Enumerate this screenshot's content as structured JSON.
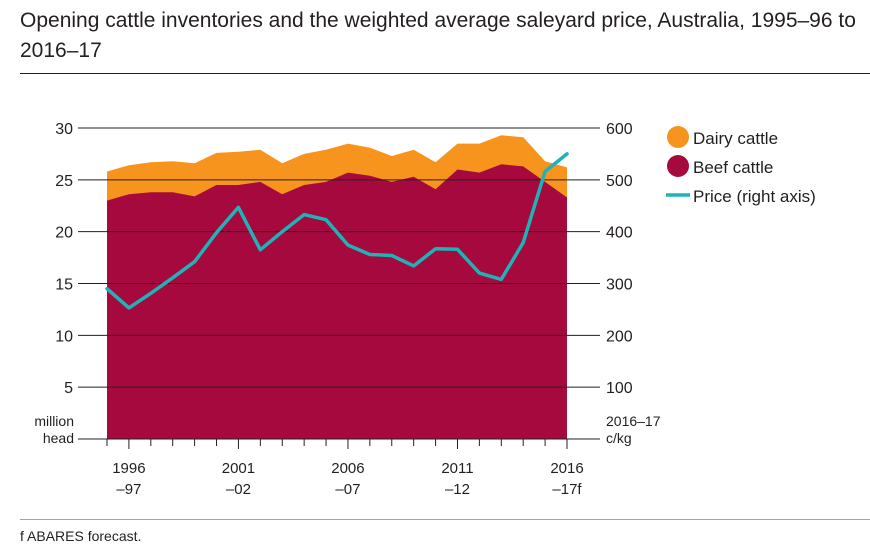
{
  "title": "Opening cattle inventories and the weighted average saleyard price, Australia, 1995–96 to 2016–17",
  "footnote": "f ABARES forecast.",
  "colors": {
    "dairy": "#f7941d",
    "beef": "#a6093d",
    "price": "#1db3b8",
    "rule": "#f7941d",
    "axis": "#231f20"
  },
  "chart_data": {
    "type": "area",
    "x": [
      "1995-96",
      "1996-97",
      "1997-98",
      "1998-99",
      "1999-00",
      "2000-01",
      "2001-02",
      "2002-03",
      "2003-04",
      "2004-05",
      "2005-06",
      "2006-07",
      "2007-08",
      "2008-09",
      "2009-10",
      "2010-11",
      "2011-12",
      "2012-13",
      "2013-14",
      "2014-15",
      "2015-16",
      "2016-17f"
    ],
    "series": [
      {
        "name": "Beef cattle",
        "kind": "area",
        "axis": "left",
        "values": [
          23.0,
          23.6,
          23.8,
          23.8,
          23.4,
          24.5,
          24.5,
          24.8,
          23.6,
          24.5,
          24.8,
          25.7,
          25.4,
          24.8,
          25.3,
          24.1,
          26.0,
          25.7,
          26.5,
          26.3,
          24.8,
          23.3
        ]
      },
      {
        "name": "Dairy cattle",
        "kind": "area",
        "axis": "left",
        "stacked": true,
        "values": [
          2.8,
          2.8,
          2.9,
          3.0,
          3.2,
          3.1,
          3.2,
          3.1,
          3.0,
          3.0,
          3.1,
          2.8,
          2.7,
          2.5,
          2.6,
          2.6,
          2.5,
          2.8,
          2.8,
          2.8,
          2.0,
          2.9
        ]
      },
      {
        "name": "Price (right axis)",
        "kind": "line",
        "axis": "right",
        "values": [
          290,
          253,
          281,
          311,
          342,
          398,
          447,
          365,
          400,
          433,
          423,
          374,
          356,
          354,
          334,
          367,
          366,
          320,
          308,
          379,
          516,
          550
        ]
      }
    ],
    "y_left": {
      "ticks": [
        30,
        25,
        20,
        15,
        10,
        5
      ],
      "ylim": [
        0,
        30
      ],
      "label_line1": "million",
      "label_line2": "head"
    },
    "y_right": {
      "ticks": [
        600,
        500,
        400,
        300,
        200,
        100
      ],
      "ylim": [
        0,
        600
      ],
      "label_line1": "2016–17",
      "label_line2": "c/kg"
    },
    "x_tick_labels": [
      {
        "line1": "1996",
        "line2": "–97",
        "index": 1
      },
      {
        "line1": "2001",
        "line2": "–02",
        "index": 6
      },
      {
        "line1": "2006",
        "line2": "–07",
        "index": 11
      },
      {
        "line1": "2011",
        "line2": "–12",
        "index": 16
      },
      {
        "line1": "2016",
        "line2": "–17f",
        "index": 21
      }
    ],
    "legend": {
      "placement": "right",
      "items": [
        {
          "label": "Dairy cattle",
          "marker": "circle",
          "color": "#f7941d"
        },
        {
          "label": "Beef cattle",
          "marker": "circle",
          "color": "#a6093d"
        },
        {
          "label": "Price (right axis)",
          "marker": "line",
          "color": "#1db3b8"
        }
      ]
    },
    "grid": true
  }
}
